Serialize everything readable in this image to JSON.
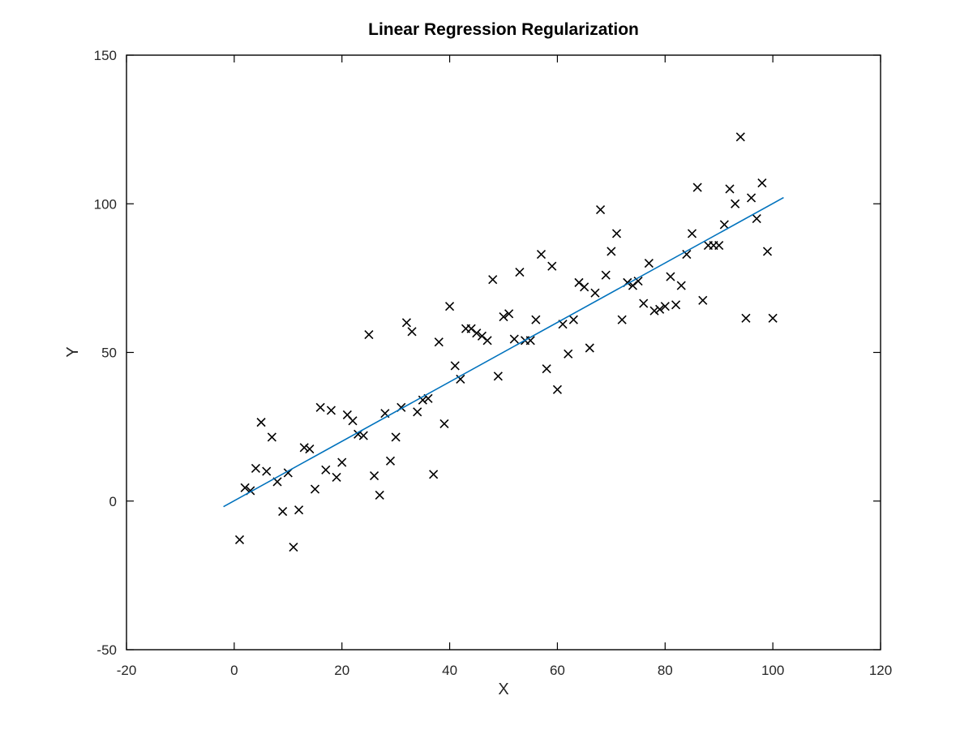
{
  "chart_data": {
    "type": "scatter",
    "title": "Linear Regression Regularization",
    "xlabel": "X",
    "ylabel": "Y",
    "xlim": [
      -20,
      120
    ],
    "ylim": [
      -50,
      150
    ],
    "xticks": [
      -20,
      0,
      20,
      40,
      60,
      80,
      100,
      120
    ],
    "yticks": [
      -50,
      0,
      50,
      100,
      150
    ],
    "xtick_labels": [
      "-20",
      "0",
      "20",
      "40",
      "60",
      "80",
      "100",
      "120"
    ],
    "ytick_labels": [
      "-50",
      "0",
      "50",
      "100",
      "150"
    ],
    "grid": false,
    "series": [
      {
        "kind": "scatter",
        "marker": "x",
        "color": "#000000",
        "points": [
          [
            1,
            -13
          ],
          [
            2,
            4.5
          ],
          [
            3,
            3.5
          ],
          [
            4,
            11
          ],
          [
            5,
            26.5
          ],
          [
            6,
            10
          ],
          [
            7,
            21.5
          ],
          [
            8,
            6.5
          ],
          [
            9,
            -3.5
          ],
          [
            10,
            9.5
          ],
          [
            11,
            -15.5
          ],
          [
            12,
            -3
          ],
          [
            13,
            18
          ],
          [
            14,
            17.5
          ],
          [
            15,
            4
          ],
          [
            16,
            31.5
          ],
          [
            17,
            10.5
          ],
          [
            18,
            30.5
          ],
          [
            19,
            8
          ],
          [
            20,
            13
          ],
          [
            21,
            29
          ],
          [
            22,
            27
          ],
          [
            23,
            22.5
          ],
          [
            24,
            22
          ],
          [
            25,
            56
          ],
          [
            26,
            8.5
          ],
          [
            27,
            2
          ],
          [
            28,
            29.5
          ],
          [
            29,
            13.5
          ],
          [
            30,
            21.5
          ],
          [
            31,
            31.5
          ],
          [
            32,
            60
          ],
          [
            33,
            57
          ],
          [
            34,
            30
          ],
          [
            35,
            34
          ],
          [
            36,
            34.5
          ],
          [
            37,
            9
          ],
          [
            38,
            53.5
          ],
          [
            39,
            26
          ],
          [
            40,
            65.5
          ],
          [
            41,
            45.5
          ],
          [
            42,
            41
          ],
          [
            43,
            58
          ],
          [
            44,
            58
          ],
          [
            45,
            56.5
          ],
          [
            46,
            55.5
          ],
          [
            47,
            54
          ],
          [
            48,
            74.5
          ],
          [
            49,
            42
          ],
          [
            50,
            62
          ],
          [
            51,
            63
          ],
          [
            52,
            54.5
          ],
          [
            53,
            77
          ],
          [
            54,
            54
          ],
          [
            55,
            54
          ],
          [
            56,
            61
          ],
          [
            57,
            83
          ],
          [
            58,
            44.5
          ],
          [
            59,
            79
          ],
          [
            60,
            37.5
          ],
          [
            61,
            59.5
          ],
          [
            62,
            49.5
          ],
          [
            63,
            61
          ],
          [
            64,
            73.5
          ],
          [
            65,
            72
          ],
          [
            66,
            51.5
          ],
          [
            67,
            70
          ],
          [
            68,
            98
          ],
          [
            69,
            76
          ],
          [
            70,
            84
          ],
          [
            71,
            90
          ],
          [
            72,
            61
          ],
          [
            73,
            73.5
          ],
          [
            74,
            72.5
          ],
          [
            75,
            74
          ],
          [
            76,
            66.5
          ],
          [
            77,
            80
          ],
          [
            78,
            64
          ],
          [
            79,
            64.5
          ],
          [
            80,
            65.5
          ],
          [
            81,
            75.5
          ],
          [
            82,
            66
          ],
          [
            83,
            72.5
          ],
          [
            84,
            83
          ],
          [
            85,
            90
          ],
          [
            86,
            105.5
          ],
          [
            87,
            67.5
          ],
          [
            88,
            86
          ],
          [
            89,
            86
          ],
          [
            90,
            86
          ],
          [
            91,
            93
          ],
          [
            92,
            105
          ],
          [
            93,
            100
          ],
          [
            94,
            122.5
          ],
          [
            95,
            61.5
          ],
          [
            96,
            102
          ],
          [
            97,
            95
          ],
          [
            98,
            107
          ],
          [
            99,
            84
          ],
          [
            100,
            61.5
          ]
        ]
      },
      {
        "kind": "line",
        "color": "#0072bd",
        "points": [
          [
            -2,
            -1.9
          ],
          [
            102,
            102.1
          ]
        ]
      }
    ]
  }
}
